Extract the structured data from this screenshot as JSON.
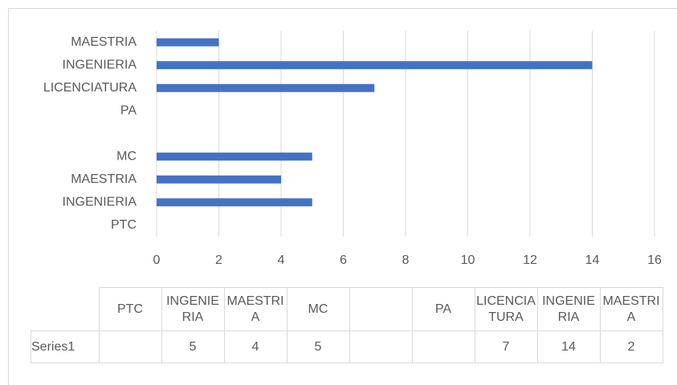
{
  "chart_data": {
    "type": "bar",
    "orientation": "horizontal",
    "categories": [
      "PTC",
      "INGENIERIA",
      "MAESTRIA",
      "MC",
      null,
      "PA",
      "LICENCIATURA",
      "INGENIERIA",
      "MAESTRIA"
    ],
    "series": [
      {
        "name": "Series1",
        "color": "#4472c4",
        "values": [
          null,
          5,
          4,
          5,
          null,
          null,
          7,
          14,
          2
        ]
      }
    ],
    "xlim": [
      0,
      16
    ],
    "xticks": [
      0,
      2,
      4,
      6,
      8,
      10,
      12,
      14,
      16
    ],
    "grid": true,
    "data_table": true
  }
}
